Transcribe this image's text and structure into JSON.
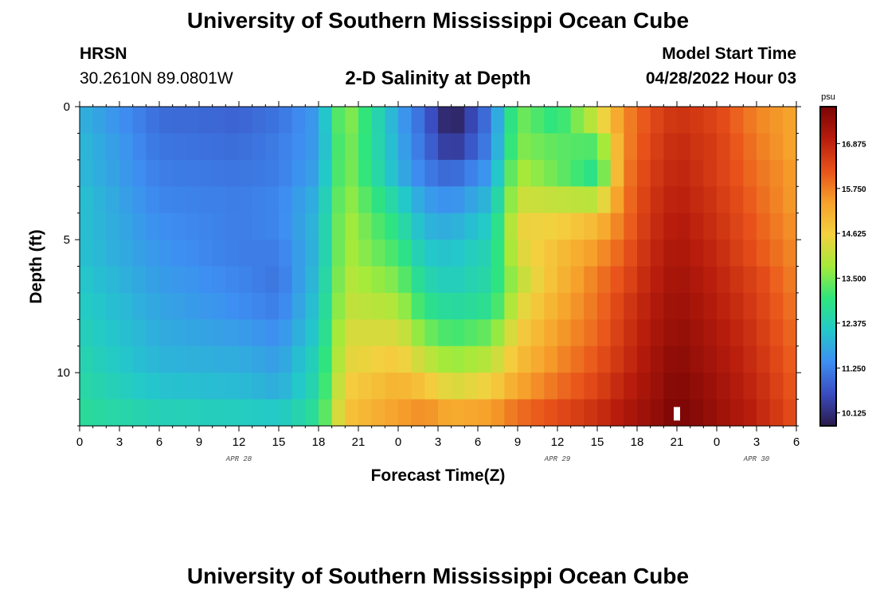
{
  "page": {
    "title": "University of Southern Mississippi Ocean Cube",
    "footer_title": "University of Southern Mississippi Ocean Cube",
    "station_code": "HRSN",
    "station_coords": "30.2610N  89.0801W",
    "plot_title": "2-D Salinity at Depth",
    "model_label": "Model Start Time",
    "model_time": "04/28/2022 Hour 03"
  },
  "colors": {
    "scale": [
      "#2a1a4a",
      "#3a4cc0",
      "#3e8ef2",
      "#23c9c9",
      "#2fe57c",
      "#a5ea3a",
      "#f4d03f",
      "#f6a12b",
      "#e8521a",
      "#b71c0c",
      "#7a0505"
    ]
  },
  "chart_data": {
    "type": "heatmap",
    "xlabel": "Forecast Time(Z)",
    "ylabel": "Depth (ft)",
    "x_ticks": [
      "0",
      "3",
      "6",
      "9",
      "12",
      "15",
      "18",
      "21",
      "0",
      "3",
      "6",
      "9",
      "12",
      "15",
      "18",
      "21",
      "0",
      "3",
      "6"
    ],
    "x_range_hours": [
      0,
      54
    ],
    "date_labels": [
      {
        "text": "APR 28",
        "hour": 12
      },
      {
        "text": "APR 29",
        "hour": 36
      },
      {
        "text": "APR 30",
        "hour": 51
      }
    ],
    "y_ticks": [
      "0",
      "5",
      "10"
    ],
    "y_tick_values": [
      0,
      5,
      10
    ],
    "ylim": [
      0,
      12
    ],
    "y_inverted": true,
    "colorbar": {
      "unit": "psu",
      "range": [
        9.8,
        17.8
      ],
      "labels": [
        "16.875",
        "15.750",
        "14.625",
        "13.500",
        "12.375",
        "11.250",
        "10.125"
      ],
      "label_values": [
        16.875,
        15.75,
        14.625,
        13.5,
        12.375,
        11.25,
        10.125
      ]
    },
    "grid": false,
    "marker": {
      "hour": 45,
      "depth": 11.8,
      "color": "#ffffff"
    },
    "depths": [
      0,
      1,
      2,
      3,
      4,
      5,
      6,
      7,
      8,
      9,
      10,
      11
    ],
    "times": [
      0,
      6,
      12,
      15,
      18,
      20,
      24,
      26,
      28,
      31,
      33,
      36,
      39,
      41,
      43,
      45,
      48,
      51,
      54
    ],
    "values": [
      [
        11.9,
        11.0,
        10.9,
        11.1,
        11.6,
        13.8,
        11.7,
        10.9,
        9.8,
        11.2,
        13.5,
        12.9,
        14.2,
        15.6,
        16.3,
        16.7,
        16.4,
        15.7,
        15.3
      ],
      [
        12.0,
        11.1,
        11.0,
        11.2,
        11.6,
        13.7,
        11.8,
        11.0,
        10.2,
        11.3,
        13.6,
        13.3,
        13.2,
        15.6,
        16.4,
        16.8,
        16.5,
        15.8,
        15.3
      ],
      [
        12.0,
        11.2,
        11.1,
        11.2,
        11.7,
        13.7,
        11.9,
        11.2,
        10.9,
        11.6,
        13.9,
        13.4,
        12.8,
        15.7,
        16.5,
        16.9,
        16.5,
        15.9,
        15.4
      ],
      [
        12.1,
        11.3,
        11.2,
        11.3,
        11.9,
        13.8,
        12.4,
        11.6,
        11.4,
        12.0,
        14.2,
        14.1,
        14.0,
        15.8,
        16.6,
        17.0,
        16.6,
        16.0,
        15.4
      ],
      [
        12.1,
        11.4,
        11.2,
        11.3,
        12.0,
        13.9,
        12.8,
        11.9,
        11.8,
        12.3,
        14.5,
        14.6,
        15.0,
        15.9,
        16.7,
        17.1,
        16.7,
        16.1,
        15.5
      ],
      [
        12.1,
        11.5,
        11.2,
        11.2,
        12.0,
        13.9,
        13.1,
        12.2,
        12.1,
        12.5,
        14.3,
        14.9,
        15.5,
        16.1,
        16.8,
        17.2,
        16.8,
        16.2,
        15.6
      ],
      [
        12.2,
        11.6,
        11.3,
        11.1,
        12.1,
        14.0,
        13.5,
        12.5,
        12.3,
        12.6,
        14.0,
        15.0,
        15.8,
        16.3,
        16.9,
        17.3,
        16.9,
        16.4,
        15.7
      ],
      [
        12.3,
        11.7,
        11.4,
        11.2,
        12.2,
        14.1,
        13.9,
        12.9,
        12.6,
        12.8,
        14.3,
        15.2,
        15.9,
        16.5,
        17.0,
        17.4,
        17.0,
        16.5,
        15.8
      ],
      [
        12.4,
        11.8,
        11.6,
        11.4,
        12.3,
        14.3,
        14.3,
        13.5,
        13.1,
        13.4,
        14.6,
        15.4,
        16.0,
        16.6,
        17.1,
        17.5,
        17.1,
        16.6,
        15.9
      ],
      [
        12.5,
        11.9,
        11.8,
        11.6,
        12.5,
        14.4,
        14.7,
        14.1,
        13.7,
        14.0,
        14.9,
        15.6,
        16.2,
        16.7,
        17.2,
        17.6,
        17.2,
        16.7,
        16.0
      ],
      [
        12.6,
        12.1,
        12.0,
        11.8,
        12.6,
        14.6,
        15.1,
        14.8,
        14.3,
        14.6,
        15.3,
        15.9,
        16.4,
        16.9,
        17.3,
        17.7,
        17.3,
        16.8,
        16.1
      ],
      [
        12.7,
        12.4,
        12.3,
        12.2,
        12.8,
        14.8,
        15.4,
        15.6,
        15.2,
        15.4,
        15.9,
        16.3,
        16.7,
        17.1,
        17.4,
        17.8,
        17.4,
        16.9,
        16.2
      ]
    ]
  }
}
